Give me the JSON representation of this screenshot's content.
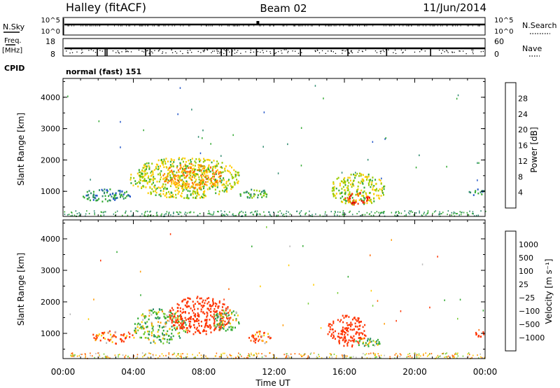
{
  "header": {
    "station": "Halley (fitACF)",
    "beam": "Beam 02",
    "date": "11/Jun/2014"
  },
  "top_panels": {
    "nsky": {
      "label": "N.Sky",
      "tick_top": "10^5",
      "tick_bottom": "10^0"
    },
    "nsearch": {
      "label": "N.Search",
      "tick_top": "10^5",
      "tick_bottom": "10^0"
    },
    "freq": {
      "label_top": "Freq.",
      "label_bottom": "[MHz]",
      "tick_top": "18",
      "tick_bottom": "8"
    },
    "nave": {
      "label": "Nave",
      "tick_top": "60",
      "tick_bottom": "0"
    },
    "cpid": {
      "label": "CPID",
      "value": "normal (fast) 151"
    }
  },
  "axes": {
    "ylabel": "Slant Range [km]",
    "xlabel": "Time UT",
    "x_ticks": [
      "00:00",
      "04:00",
      "08:00",
      "12:00",
      "16:00",
      "20:00",
      "00:00"
    ],
    "y_ticks": [
      "1000",
      "2000",
      "3000",
      "4000"
    ]
  },
  "power_colorbar": {
    "label": "Power [dB]",
    "ticks": [
      "4",
      "8",
      "12",
      "16",
      "20",
      "24",
      "28"
    ],
    "colors": [
      "#1a1aff",
      "#2255c8",
      "#2e8a6e",
      "#33aa33",
      "#99cc00",
      "#ffcc00",
      "#ff9900",
      "#ff6600",
      "#ff3300",
      "#ee0000"
    ]
  },
  "velocity_colorbar": {
    "label": "Velocity [m s⁻¹]",
    "ticks": [
      "1000",
      "500",
      "100",
      "25",
      "−25",
      "−100",
      "−500",
      "−1000"
    ],
    "colors": [
      "#2233cc",
      "#1f55aa",
      "#2e8a6e",
      "#33aa33",
      "#77cc33",
      "#bbbbbb",
      "#ffcc00",
      "#ff9900",
      "#ff6600",
      "#ff3300",
      "#ee0000"
    ]
  },
  "chart_data": [
    {
      "type": "heatmap",
      "xlabel": "Time UT",
      "ylabel": "Slant Range [km]",
      "xlim": [
        0,
        24
      ],
      "ylim": [
        200,
        4600
      ],
      "colorbar": {
        "label": "Power [dB]",
        "range": [
          0,
          30
        ]
      },
      "regions": [
        {
          "t": [
            1.0,
            3.8
          ],
          "r": [
            700,
            1100
          ],
          "value": 8
        },
        {
          "t": [
            3.8,
            10.0
          ],
          "r": [
            800,
            2100
          ],
          "value": 14
        },
        {
          "t": [
            5.5,
            9.0
          ],
          "r": [
            1100,
            1900
          ],
          "value": 20
        },
        {
          "t": [
            10.0,
            11.8
          ],
          "r": [
            800,
            1100
          ],
          "value": 10
        },
        {
          "t": [
            15.2,
            18.3
          ],
          "r": [
            600,
            1600
          ],
          "value": 14
        },
        {
          "t": [
            16.0,
            17.4
          ],
          "r": [
            600,
            1000
          ],
          "value": 26
        },
        {
          "t": [
            23.0,
            24.0
          ],
          "r": [
            900,
            1100
          ],
          "value": 8
        }
      ]
    },
    {
      "type": "heatmap",
      "xlabel": "Time UT",
      "ylabel": "Slant Range [km]",
      "xlim": [
        0,
        24
      ],
      "ylim": [
        200,
        4600
      ],
      "colorbar": {
        "label": "Velocity [m s⁻¹]",
        "range": [
          -1000,
          1000
        ]
      },
      "regions": [
        {
          "t": [
            1.5,
            4.0
          ],
          "r": [
            700,
            1100
          ],
          "value": -100
        },
        {
          "t": [
            4.0,
            7.0
          ],
          "r": [
            700,
            1800
          ],
          "value": 100
        },
        {
          "t": [
            6.0,
            9.5
          ],
          "r": [
            1000,
            2200
          ],
          "value": -300
        },
        {
          "t": [
            8.5,
            10.0
          ],
          "r": [
            1100,
            1800
          ],
          "value": 100
        },
        {
          "t": [
            10.5,
            11.8
          ],
          "r": [
            700,
            1100
          ],
          "value": -100
        },
        {
          "t": [
            15.0,
            17.2
          ],
          "r": [
            600,
            1600
          ],
          "value": -300
        },
        {
          "t": [
            16.6,
            18.1
          ],
          "r": [
            600,
            900
          ],
          "value": 100
        },
        {
          "t": [
            23.3,
            24.0
          ],
          "r": [
            900,
            1100
          ],
          "value": -300
        }
      ]
    }
  ]
}
